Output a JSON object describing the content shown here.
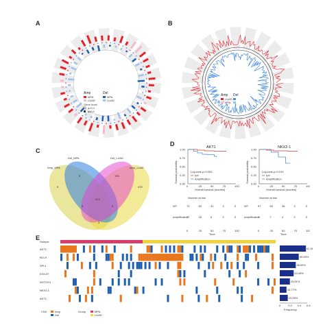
{
  "panels": {
    "a": "A",
    "b": "B",
    "c": "C",
    "d": "D",
    "e": "E"
  },
  "panel_a": {
    "legend": {
      "amp_title": "Amp",
      "del_title": "Del",
      "amp_items": [
        "MPA",
        "LUAD"
      ],
      "del_items": [
        "MPA",
        "LUAD"
      ],
      "gene_label": "Gene",
      "level_label": "-level",
      "p_items": [
        "q<0.1",
        "q≥0.1"
      ]
    }
  },
  "panel_b": {
    "legend_amp": "Amp",
    "legend_del": "Del",
    "items": [
      "LUAD",
      "MPA"
    ]
  },
  "panel_c": {
    "sets": [
      "Amp_MPA",
      "Del_MPA",
      "Del_LUAD",
      "Amp_LUAD"
    ],
    "regions": [
      "5",
      "8",
      "155",
      "419",
      "319",
      "5",
      "5",
      "3"
    ]
  },
  "panel_d": {
    "ylabel": "Survival probability",
    "xlabel": "Overall survival (months)",
    "time_label": "Time",
    "risk_title": "Number at risk",
    "plots": [
      {
        "title": "AKT1",
        "pvalue": "Log-rank p=0.003",
        "legend": [
          "WT",
          "Amplification"
        ],
        "risk_rows": [
          {
            "label": "WT",
            "values": [
              "74",
              "60",
              "31",
              "3",
              "0"
            ]
          },
          {
            "label": "Amplification",
            "values": [
              "27",
              "18",
              "8",
              "0",
              "0"
            ]
          }
        ]
      },
      {
        "title": "NKX2-1",
        "pvalue": "Log-rank p=0.019",
        "legend": [
          "WT",
          "Amplification"
        ],
        "risk_rows": [
          {
            "label": "WT",
            "values": [
              "97",
              "69",
              "36",
              "3",
              "0"
            ]
          },
          {
            "label": "Amplification",
            "values": [
              "9",
              "7",
              "4",
              "0",
              "0"
            ]
          }
        ]
      }
    ],
    "ticks": [
      "0",
      "25",
      "50",
      "75",
      "100"
    ],
    "yticks": [
      "1.00",
      "0.75",
      "0.50",
      "0.25",
      "0.00"
    ]
  },
  "panel_e": {
    "sample_label": "Sample",
    "genes": [
      "AKT1",
      "BCL9",
      "SPL1",
      "EXIL3T",
      "NOTCH1",
      "NKX2-1",
      "AKT1"
    ],
    "frequencies": [
      "61.96%",
      "45.45%",
      "38.09%",
      "33.28%",
      "23.81%",
      "15.77%",
      "19.05%"
    ],
    "freq_values": [
      0.62,
      0.45,
      0.38,
      0.33,
      0.24,
      0.16,
      0.19
    ],
    "freq_axis": [
      "0",
      "0.2",
      "0.4",
      "0.6"
    ],
    "freq_label": "Frequency",
    "legend_cnv_title": "CNV",
    "legend_cnv": [
      "Amp",
      "Del"
    ],
    "legend_group_title": "Group",
    "legend_group": [
      "MPA",
      "LUAD"
    ]
  },
  "colors": {
    "amp": "#e8202a",
    "del": "#1f5fb0",
    "amp_orange": "#e8761c",
    "mpa": "#d93d68",
    "luad": "#f1d33f",
    "pink": "#f6b7d0",
    "navy": "#1a2f8a",
    "wt_red": "#e03a2c",
    "amp_blue": "#4a90d9"
  }
}
